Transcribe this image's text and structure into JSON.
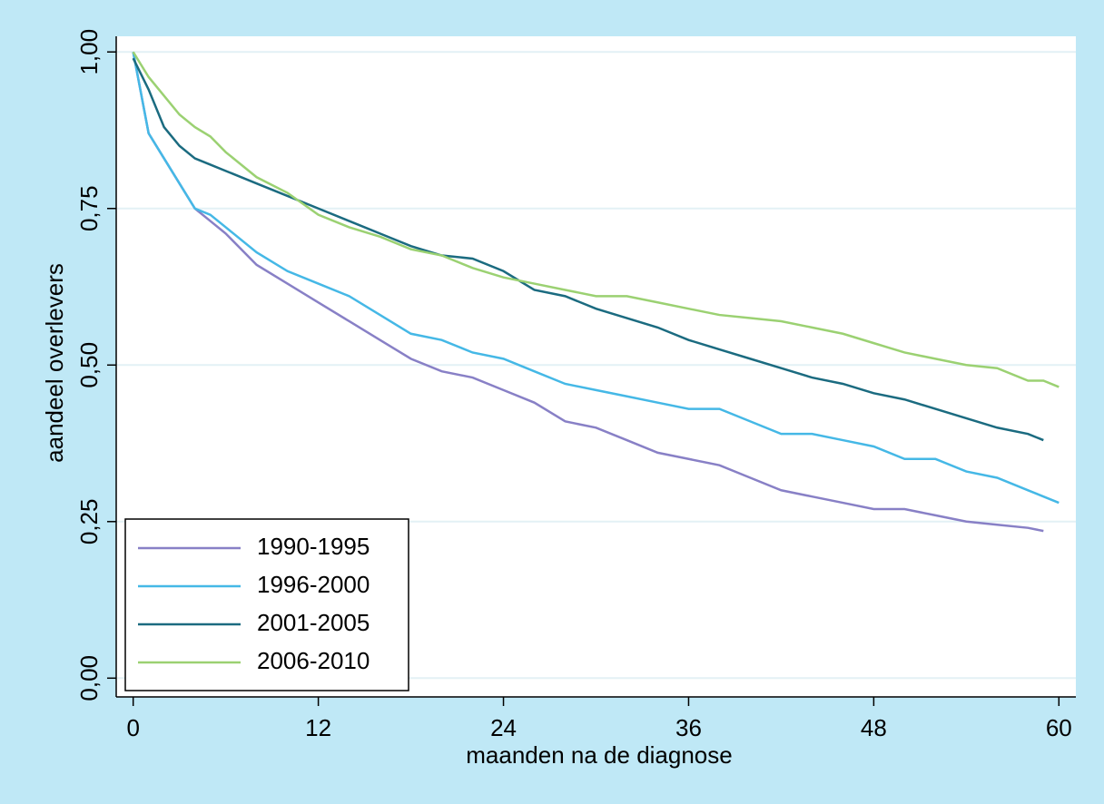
{
  "chart_data": {
    "type": "line",
    "xlabel": "maanden na de diagnose",
    "ylabel": "aandeel overlevers",
    "x": [
      0,
      1,
      2,
      3,
      4,
      5,
      6,
      8,
      10,
      12,
      14,
      16,
      18,
      20,
      22,
      24,
      26,
      28,
      30,
      32,
      34,
      36,
      38,
      40,
      42,
      44,
      46,
      48,
      50,
      52,
      54,
      56,
      58,
      59,
      60
    ],
    "series": [
      {
        "name": "1990-1995",
        "color": "#8880c6",
        "values": [
          1.0,
          0.87,
          0.83,
          0.79,
          0.75,
          0.73,
          0.71,
          0.66,
          0.63,
          0.6,
          0.57,
          0.54,
          0.51,
          0.49,
          0.48,
          0.46,
          0.44,
          0.41,
          0.4,
          0.38,
          0.36,
          0.35,
          0.34,
          0.32,
          0.3,
          0.29,
          0.28,
          0.27,
          0.27,
          0.26,
          0.25,
          0.245,
          0.24,
          0.235,
          null
        ]
      },
      {
        "name": "1996-2000",
        "color": "#45b8e6",
        "values": [
          1.0,
          0.87,
          0.83,
          0.79,
          0.75,
          0.74,
          0.72,
          0.68,
          0.65,
          0.63,
          0.61,
          0.58,
          0.55,
          0.54,
          0.52,
          0.51,
          0.49,
          0.47,
          0.46,
          0.45,
          0.44,
          0.43,
          0.43,
          0.41,
          0.39,
          0.39,
          0.38,
          0.37,
          0.35,
          0.35,
          0.33,
          0.32,
          0.3,
          0.29,
          0.28
        ]
      },
      {
        "name": "2001-2005",
        "color": "#1b6b80",
        "values": [
          0.99,
          0.94,
          0.88,
          0.85,
          0.83,
          0.82,
          0.81,
          0.79,
          0.77,
          0.75,
          0.73,
          0.71,
          0.69,
          0.675,
          0.67,
          0.65,
          0.62,
          0.61,
          0.59,
          0.575,
          0.56,
          0.54,
          0.525,
          0.51,
          0.495,
          0.48,
          0.47,
          0.455,
          0.445,
          0.43,
          0.415,
          0.4,
          0.39,
          0.38,
          null
        ]
      },
      {
        "name": "2006-2010",
        "color": "#9bd172",
        "values": [
          1.0,
          0.96,
          0.93,
          0.9,
          0.88,
          0.865,
          0.84,
          0.8,
          0.775,
          0.74,
          0.72,
          0.705,
          0.685,
          0.675,
          0.655,
          0.64,
          0.63,
          0.62,
          0.61,
          0.61,
          0.6,
          0.59,
          0.58,
          0.575,
          0.57,
          0.56,
          0.55,
          0.535,
          0.52,
          0.51,
          0.5,
          0.495,
          0.475,
          0.475,
          0.465
        ]
      }
    ],
    "xlim": [
      -1.1,
      61.1
    ],
    "xticks": [
      0,
      12,
      24,
      36,
      48,
      60
    ],
    "ylim": [
      -0.03,
      1.025
    ],
    "yticks": [
      {
        "value": 0,
        "label": "0,00"
      },
      {
        "value": 0.25,
        "label": "0,25"
      },
      {
        "value": 0.5,
        "label": "0,50"
      },
      {
        "value": 0.75,
        "label": "0,75"
      },
      {
        "value": 1,
        "label": "1,00"
      }
    ],
    "grid": true,
    "legend": "lower left"
  }
}
